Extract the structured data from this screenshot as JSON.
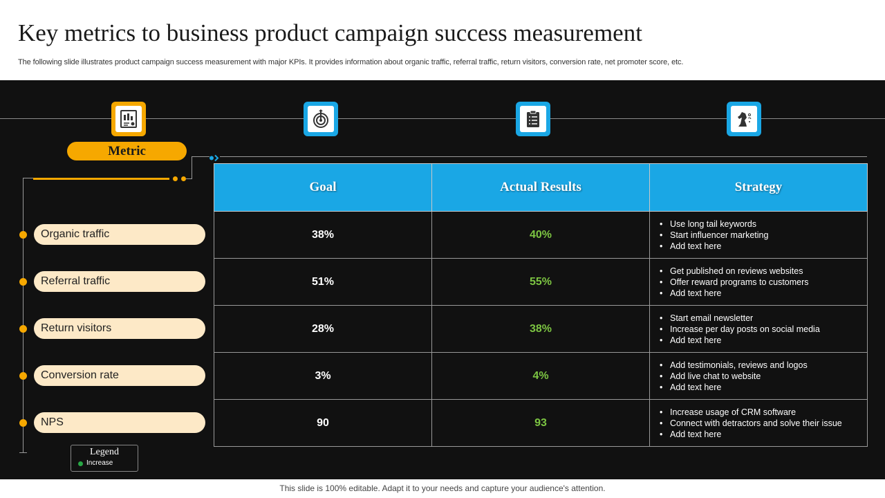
{
  "header": {
    "title": "Key metrics to business product campaign success measurement",
    "subtitle": "The following slide illustrates product campaign success measurement with major KPIs. It provides information about organic traffic, referral traffic, return visitors, conversion rate, net promoter score, etc."
  },
  "icons": [
    {
      "name": "report-chart-icon",
      "color": "#f6a800"
    },
    {
      "name": "target-dart-icon",
      "color": "#1aa7e5"
    },
    {
      "name": "clipboard-checklist-icon",
      "color": "#1aa7e5"
    },
    {
      "name": "chess-knight-strategy-icon",
      "color": "#1aa7e5"
    }
  ],
  "metric_label": "Metric",
  "table": {
    "headers": [
      "Goal",
      "Actual Results",
      "Strategy"
    ],
    "rows": [
      {
        "metric": "Organic traffic",
        "goal": "38%",
        "actual": "40%",
        "strategy": [
          "Use long tail keywords",
          "Start influencer marketing",
          "Add text here"
        ]
      },
      {
        "metric": "Referral traffic",
        "goal": "51%",
        "actual": "55%",
        "strategy": [
          "Get published on reviews websites",
          "Offer reward programs to customers",
          "Add text here"
        ]
      },
      {
        "metric": "Return visitors",
        "goal": "28%",
        "actual": "38%",
        "strategy": [
          "Start email newsletter",
          "Increase per day posts on social media",
          "Add text here"
        ]
      },
      {
        "metric": "Conversion rate",
        "goal": "3%",
        "actual": "4%",
        "strategy": [
          "Add testimonials, reviews and logos",
          "Add live chat to website",
          "Add text here"
        ]
      },
      {
        "metric": "NPS",
        "goal": "90",
        "actual": "93",
        "strategy": [
          "Increase usage of CRM software",
          "Connect with detractors and solve their issue",
          "Add text here"
        ]
      }
    ]
  },
  "legend": {
    "title": "Legend",
    "items": [
      {
        "label": "Increase",
        "color": "#28a745"
      }
    ]
  },
  "footer": "This slide is 100% editable. Adapt it to your needs and capture your audience's attention.",
  "colors": {
    "accent_orange": "#f6a800",
    "accent_blue": "#1aa7e5",
    "increase_green": "#7cc442",
    "panel_bg": "#111111"
  }
}
